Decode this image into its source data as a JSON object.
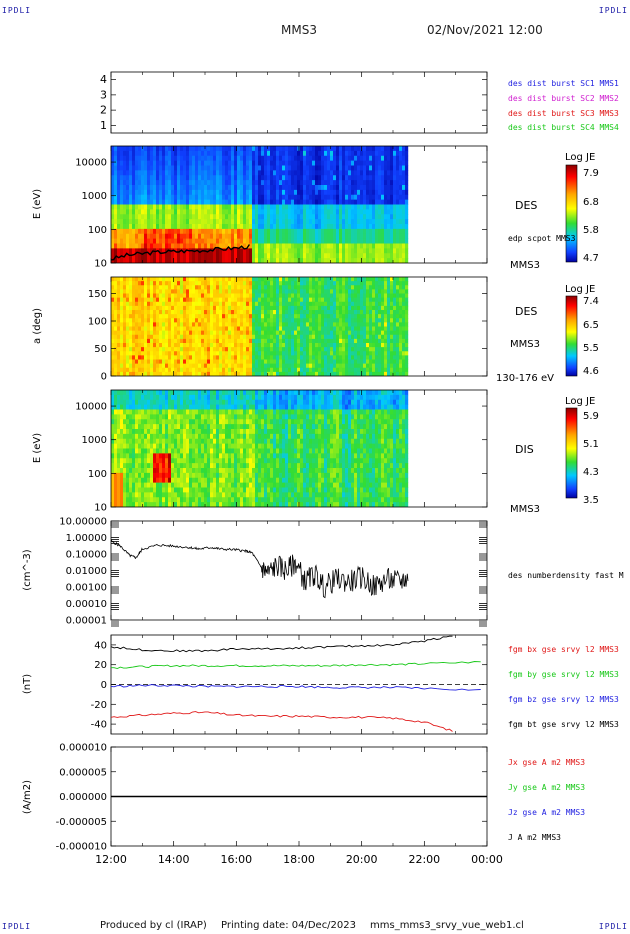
{
  "header": {
    "corner_label": "IPDLI",
    "spacecraft": "MMS3",
    "datetime": "02/Nov/2021 12:00"
  },
  "footer": {
    "producer": "Produced by cl (IRAP)",
    "printing_date": "Printing date: 04/Dec/2023",
    "filename": "mms_mms3_srvy_vue_web1.cl"
  },
  "colors": {
    "blue": "#1f1fe0",
    "magenta": "#d020d0",
    "red": "#e01818",
    "green": "#18c818",
    "black": "#000000"
  },
  "chart_data": [
    {
      "type": "line",
      "panel": "burst",
      "ylim": [
        0.5,
        4.5
      ],
      "yticks": [
        "1",
        "2",
        "3",
        "4"
      ],
      "legend": [
        {
          "label": "des dist burst SC1 MMS1",
          "color": "blue"
        },
        {
          "label": "des dist burst SC2 MMS2",
          "color": "magenta"
        },
        {
          "label": "des dist burst SC3 MMS3",
          "color": "red"
        },
        {
          "label": "des dist burst SC4 MMS4",
          "color": "green"
        }
      ]
    },
    {
      "type": "heatmap",
      "panel": "des-energy",
      "ylabel": "E (eV)",
      "yscale": "log",
      "ylim": [
        10,
        30000
      ],
      "yticks": [
        "10",
        "100",
        "1000",
        "10000"
      ],
      "species": "DES",
      "overlay_label": "edp scpot MMS3",
      "sc_label": "MMS3",
      "colorbar": {
        "title": "Log JE",
        "ticks": [
          "7.9",
          "6.8",
          "5.8",
          "4.7"
        ]
      },
      "data_end_hour": 21.5,
      "spacecraft_potential_eV": {
        "t": [
          12.0,
          12.5,
          13.0,
          13.5,
          14.0,
          14.5,
          15.0,
          15.5,
          16.0,
          16.5
        ],
        "v": [
          13,
          17,
          19,
          21,
          22,
          23,
          24,
          26,
          28,
          32
        ]
      }
    },
    {
      "type": "heatmap",
      "panel": "des-pitch",
      "ylabel": "a (deg)",
      "ylim": [
        0,
        180
      ],
      "yticks": [
        "0",
        "50",
        "100",
        "150"
      ],
      "species": "DES",
      "sc_label": "MMS3",
      "energy_range": "130-176 eV",
      "colorbar": {
        "title": "Log JE",
        "ticks": [
          "7.4",
          "6.5",
          "5.5",
          "4.6"
        ]
      },
      "data_end_hour": 21.5
    },
    {
      "type": "heatmap",
      "panel": "dis-energy",
      "ylabel": "E (eV)",
      "yscale": "log",
      "ylim": [
        10,
        30000
      ],
      "yticks": [
        "10",
        "100",
        "1000",
        "10000"
      ],
      "species": "DIS",
      "sc_label": "MMS3",
      "colorbar": {
        "title": "Log JE",
        "ticks": [
          "5.9",
          "5.1",
          "4.3",
          "3.5"
        ]
      },
      "data_end_hour": 21.5
    },
    {
      "type": "line",
      "panel": "density",
      "ylabel": "(cm^-3)",
      "yscale": "log",
      "ylim": [
        0.0001,
        10
      ],
      "yticks": [
        "0.00001",
        "0.00010",
        "0.00100",
        "0.01000",
        "0.10000",
        "1.00000",
        "10.00000"
      ],
      "legend": [
        {
          "label": "des numberdensity fast M",
          "color": "black"
        }
      ],
      "series": [
        {
          "name": "des numberdensity fast M",
          "x": [
            12.0,
            12.3,
            12.6,
            12.8,
            13.0,
            13.5,
            14.0,
            14.5,
            14.8,
            15.2,
            15.5,
            16.0,
            16.3,
            16.5,
            16.8,
            17.0,
            17.3,
            17.6,
            17.9,
            18.2,
            18.5,
            18.8,
            19.2,
            19.6,
            20.0,
            20.4,
            20.8,
            21.2,
            21.5
          ],
          "y": [
            0.6,
            0.3,
            0.08,
            0.06,
            0.2,
            0.35,
            0.3,
            0.25,
            0.2,
            0.25,
            0.2,
            0.18,
            0.15,
            0.12,
            0.015,
            0.007,
            0.02,
            0.01,
            0.03,
            0.002,
            0.006,
            0.001,
            0.003,
            0.002,
            0.004,
            0.001,
            0.003,
            0.002,
            0.004
          ]
        }
      ]
    },
    {
      "type": "line",
      "panel": "magnetic-field",
      "ylabel": "(nT)",
      "ylim": [
        -50,
        50
      ],
      "yticks": [
        "-40",
        "-20",
        "0",
        "20",
        "40"
      ],
      "legend": [
        {
          "label": "fgm bx gse srvy l2 MMS3",
          "color": "red"
        },
        {
          "label": "fgm by gse srvy l2 MMS3",
          "color": "green"
        },
        {
          "label": "fgm bz gse srvy l2 MMS3",
          "color": "blue"
        },
        {
          "label": "fgm bt gse srvy l2 MMS3",
          "color": "black"
        }
      ],
      "series": [
        {
          "name": "fgm bx gse srvy l2 MMS3",
          "x": [
            12,
            13,
            14,
            15,
            16,
            17,
            18,
            19,
            20,
            21,
            22,
            23
          ],
          "y": [
            -33,
            -31,
            -29,
            -28,
            -31,
            -32,
            -32,
            -33,
            -33,
            -34,
            -38,
            -48
          ]
        },
        {
          "name": "fgm by gse srvy l2 MMS3",
          "x": [
            12,
            13,
            14,
            15,
            16,
            17,
            18,
            19,
            20,
            21,
            22,
            24
          ],
          "y": [
            17,
            18,
            19,
            19,
            19,
            19,
            19,
            19,
            20,
            20,
            21,
            23
          ]
        },
        {
          "name": "fgm bz gse srvy l2 MMS3",
          "x": [
            12,
            13,
            14,
            15,
            16,
            17,
            18,
            19,
            20,
            21,
            22,
            24
          ],
          "y": [
            -2,
            -1,
            -1,
            -2,
            -2,
            -2,
            -2,
            -3,
            -3,
            -3,
            -4,
            -6
          ]
        },
        {
          "name": "fgm bt gse srvy l2 MMS3",
          "x": [
            12,
            13,
            14,
            15,
            16,
            17,
            18,
            19,
            20,
            21,
            22,
            23
          ],
          "y": [
            38,
            35,
            34,
            34,
            36,
            36,
            37,
            38,
            39,
            40,
            44,
            50
          ]
        }
      ]
    },
    {
      "type": "line",
      "panel": "current-density",
      "ylabel": "(A/m2)",
      "ylim": [
        -1e-05,
        1e-05
      ],
      "yticks": [
        "-0.000010",
        "-0.000005",
        "0.000000",
        "0.000005",
        "0.000010"
      ],
      "legend": [
        {
          "label": "Jx gse A m2 MMS3",
          "color": "red"
        },
        {
          "label": "Jy gse A m2 MMS3",
          "color": "green"
        },
        {
          "label": "Jz gse A m2 MMS3",
          "color": "blue"
        },
        {
          "label": "J A m2 MMS3",
          "color": "black"
        }
      ],
      "series": [
        {
          "name": "J A m2 MMS3",
          "x": [
            12,
            24
          ],
          "y": [
            0,
            0
          ]
        }
      ]
    }
  ],
  "x_axis": {
    "xlim": [
      12,
      24
    ],
    "tick_hours": [
      12,
      14,
      16,
      18,
      20,
      22,
      24
    ],
    "tick_labels": [
      "12:00",
      "14:00",
      "16:00",
      "18:00",
      "20:00",
      "22:00",
      "00:00"
    ]
  }
}
